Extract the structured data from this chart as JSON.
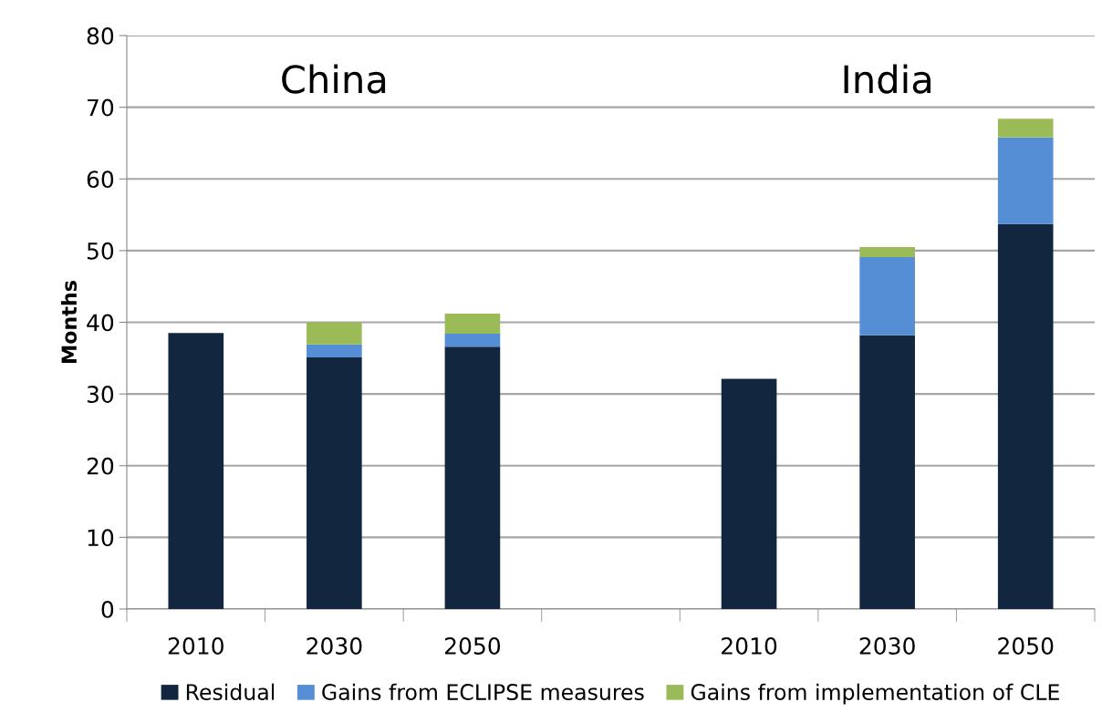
{
  "chart_data": {
    "type": "bar",
    "stacked": true,
    "ylabel": "Months",
    "categories": [
      "2010",
      "2030",
      "2050",
      null,
      "2010",
      "2030",
      "2050"
    ],
    "series": [
      {
        "name": "Residual",
        "color": "#12263f",
        "values": [
          38.5,
          35.1,
          36.6,
          null,
          32.1,
          38.2,
          53.7
        ]
      },
      {
        "name": "Gains from ECLIPSE measures",
        "color": "#558ed5",
        "values": [
          null,
          1.8,
          1.8,
          null,
          null,
          10.9,
          12.1
        ]
      },
      {
        "name": "Gains from implementation of CLE",
        "color": "#9bbb59",
        "values": [
          null,
          3.1,
          2.8,
          null,
          null,
          1.4,
          2.6
        ]
      }
    ],
    "annotations": [
      "China",
      "India"
    ],
    "ylim": [
      0,
      80
    ],
    "yticks": [
      0,
      10,
      20,
      30,
      40,
      50,
      60,
      70,
      80
    ],
    "grid": "y",
    "legend": "bottom"
  }
}
